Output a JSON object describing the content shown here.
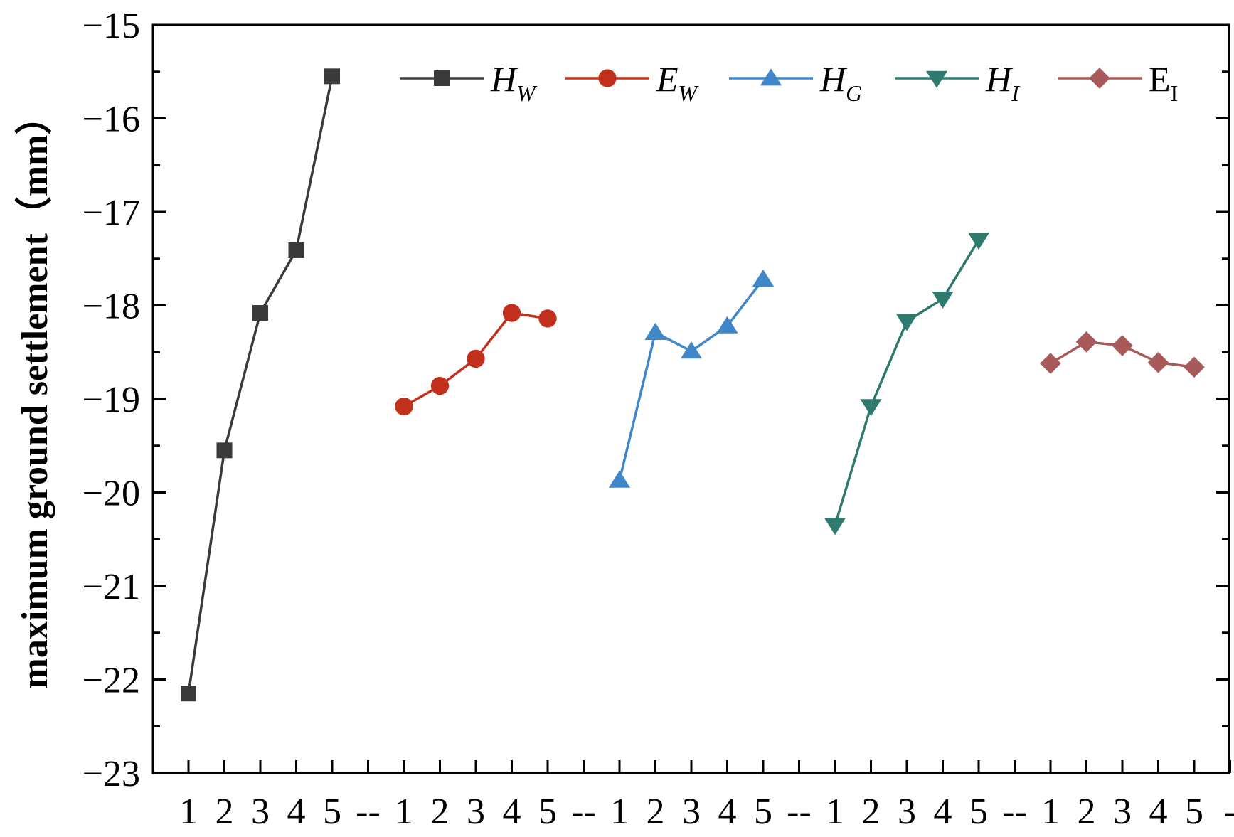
{
  "chart_data": {
    "type": "line",
    "ylabel": "maximum ground settlement（mm）",
    "ylim": [
      -23,
      -15
    ],
    "yticks": [
      -23,
      -22,
      -21,
      -20,
      -19,
      -18,
      -17,
      -16,
      -15
    ],
    "ytick_labels": [
      "−23",
      "−22",
      "−21",
      "−20",
      "−19",
      "−18",
      "−17",
      "−16",
      "−15"
    ],
    "xtick_labels": [
      "1",
      "2",
      "3",
      "4",
      "5",
      "--",
      "1",
      "2",
      "3",
      "4",
      "5",
      "--",
      "1",
      "2",
      "3",
      "4",
      "5",
      "--",
      "1",
      "2",
      "3",
      "4",
      "5",
      "--",
      "1",
      "2",
      "3",
      "4",
      "5",
      "-"
    ],
    "grid": false,
    "legend_position": "top",
    "series": [
      {
        "name": "H",
        "sub": "W",
        "italic": true,
        "color": "#3a3a3a",
        "marker": "square",
        "x": [
          1,
          2,
          3,
          4,
          5
        ],
        "values": [
          -22.15,
          -19.55,
          -18.08,
          -17.41,
          -15.55
        ]
      },
      {
        "name": "E",
        "sub": "W",
        "italic": true,
        "color": "#c0301c",
        "marker": "circle",
        "x": [
          7,
          8,
          9,
          10,
          11
        ],
        "values": [
          -19.08,
          -18.86,
          -18.57,
          -18.08,
          -18.14
        ]
      },
      {
        "name": "H",
        "sub": "G",
        "italic": true,
        "color": "#3f87c8",
        "marker": "triangle-up",
        "x": [
          13,
          14,
          15,
          16,
          17
        ],
        "values": [
          -19.87,
          -18.29,
          -18.49,
          -18.22,
          -17.72
        ]
      },
      {
        "name": "H",
        "sub": "I",
        "italic": true,
        "color": "#2f7a6e",
        "marker": "triangle-down",
        "x": [
          19,
          20,
          21,
          22,
          23
        ],
        "values": [
          -20.35,
          -19.08,
          -18.17,
          -17.93,
          -17.3
        ]
      },
      {
        "name": "E",
        "sub": "I",
        "italic": false,
        "color": "#a85a5a",
        "marker": "diamond",
        "x": [
          25,
          26,
          27,
          28,
          29
        ],
        "values": [
          -18.62,
          -18.39,
          -18.43,
          -18.61,
          -18.66
        ]
      }
    ]
  }
}
